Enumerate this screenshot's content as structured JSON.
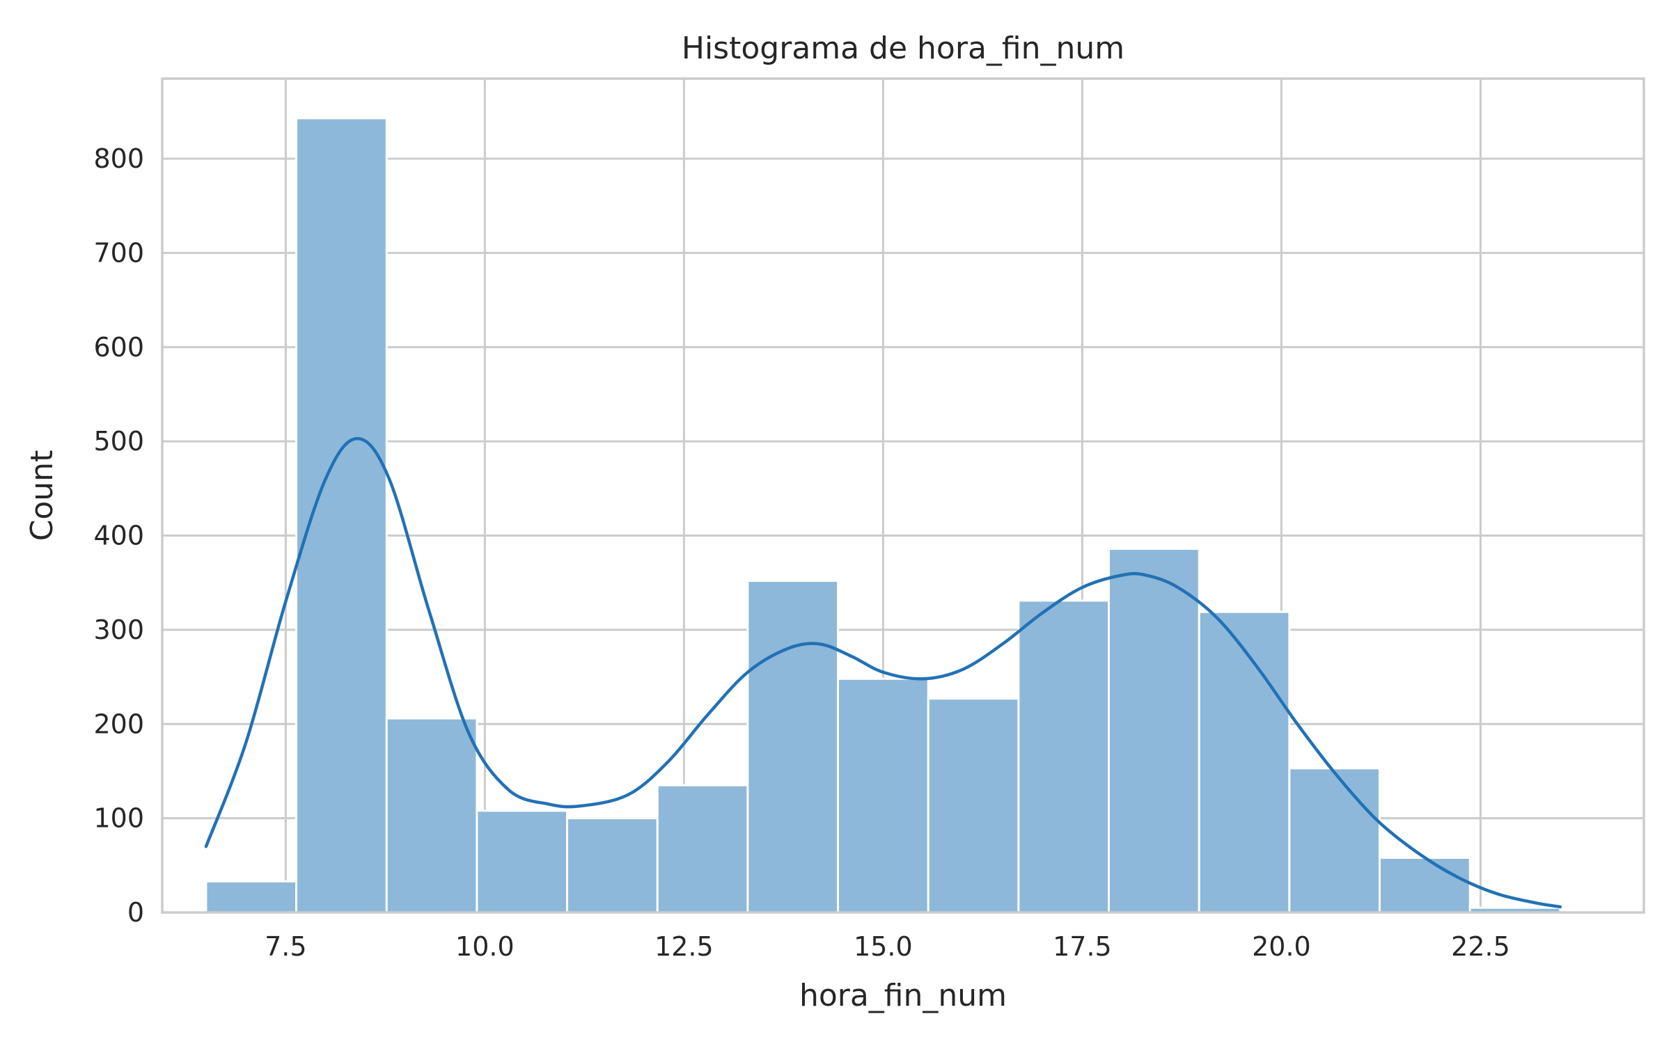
{
  "chart_data": {
    "type": "bar",
    "subtype": "histogram-with-kde",
    "title": "Histograma de hora_fin_num",
    "xlabel": "hora_fin_num",
    "ylabel": "Count",
    "xlim": [
      5.95,
      24.55
    ],
    "ylim": [
      0,
      885
    ],
    "xticks": [
      7.5,
      10.0,
      12.5,
      15.0,
      17.5,
      20.0,
      22.5
    ],
    "xtick_labels": [
      "7.5",
      "10.0",
      "12.5",
      "15.0",
      "17.5",
      "20.0",
      "22.5"
    ],
    "yticks": [
      0,
      100,
      200,
      300,
      400,
      500,
      600,
      700,
      800
    ],
    "ytick_labels": [
      "0",
      "100",
      "200",
      "300",
      "400",
      "500",
      "600",
      "700",
      "800"
    ],
    "grid": true,
    "legend": "none",
    "bins": [
      {
        "x0": 6.5,
        "x1": 7.633,
        "count": 33
      },
      {
        "x0": 7.633,
        "x1": 8.767,
        "count": 843
      },
      {
        "x0": 8.767,
        "x1": 9.9,
        "count": 206
      },
      {
        "x0": 9.9,
        "x1": 11.033,
        "count": 108
      },
      {
        "x0": 11.033,
        "x1": 12.167,
        "count": 100
      },
      {
        "x0": 12.167,
        "x1": 13.3,
        "count": 135
      },
      {
        "x0": 13.3,
        "x1": 14.433,
        "count": 352
      },
      {
        "x0": 14.433,
        "x1": 15.567,
        "count": 248
      },
      {
        "x0": 15.567,
        "x1": 16.7,
        "count": 227
      },
      {
        "x0": 16.7,
        "x1": 17.833,
        "count": 331
      },
      {
        "x0": 17.833,
        "x1": 18.967,
        "count": 386
      },
      {
        "x0": 18.967,
        "x1": 20.1,
        "count": 319
      },
      {
        "x0": 20.1,
        "x1": 21.233,
        "count": 153
      },
      {
        "x0": 21.233,
        "x1": 22.367,
        "count": 58
      },
      {
        "x0": 22.367,
        "x1": 23.5,
        "count": 5
      }
    ],
    "kde": {
      "x": [
        6.5,
        7.0,
        7.5,
        8.0,
        8.4,
        8.8,
        9.3,
        9.8,
        10.3,
        10.8,
        11.2,
        11.8,
        12.3,
        12.8,
        13.3,
        13.8,
        14.2,
        14.6,
        15.0,
        15.5,
        16.0,
        16.5,
        17.0,
        17.5,
        18.0,
        18.3,
        18.7,
        19.2,
        19.7,
        20.2,
        20.7,
        21.2,
        21.7,
        22.2,
        22.7,
        23.2,
        23.5
      ],
      "y": [
        70,
        180,
        330,
        460,
        503,
        460,
        320,
        190,
        130,
        115,
        113,
        125,
        160,
        210,
        255,
        280,
        285,
        272,
        255,
        248,
        258,
        285,
        318,
        345,
        358,
        358,
        345,
        312,
        260,
        200,
        145,
        98,
        64,
        38,
        20,
        10,
        6
      ]
    },
    "colors": {
      "bar_fill": "#8db8d9",
      "bar_edge": "#ffffff",
      "kde_line": "#2271b5",
      "grid": "#cccccc",
      "background": "#ffffff"
    }
  }
}
